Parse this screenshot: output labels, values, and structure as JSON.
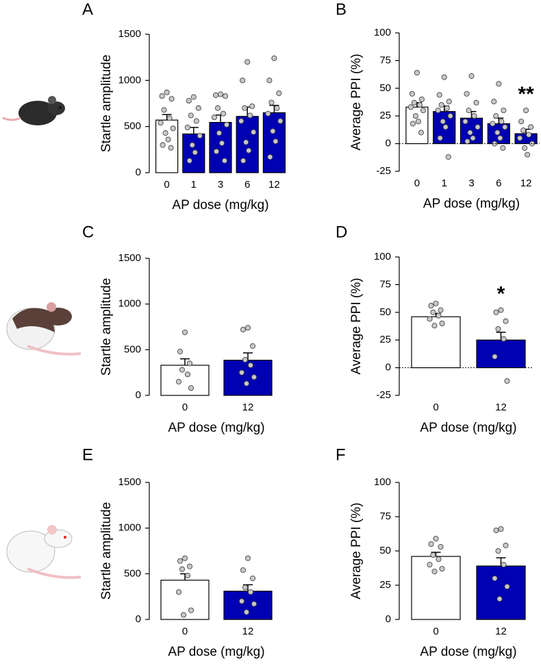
{
  "chart_data": [
    {
      "type": "bar",
      "panel": "A",
      "ylabel": "Startle amplitude",
      "xlabel": "AP dose (mg/kg)",
      "categories": [
        "0",
        "1",
        "3",
        "6",
        "12"
      ],
      "values": [
        570,
        420,
        545,
        610,
        650
      ],
      "errors": [
        60,
        70,
        80,
        100,
        80
      ],
      "colors": [
        "#ffffff",
        "#0000b3",
        "#0000b3",
        "#0000b3",
        "#0000b3"
      ],
      "points": [
        [
          870,
          830,
          800,
          680,
          590,
          540,
          480,
          430,
          360,
          300,
          270
        ],
        [
          820,
          780,
          700,
          620,
          560,
          490,
          400,
          300,
          220,
          130
        ],
        [
          850,
          840,
          830,
          700,
          640,
          600,
          520,
          430,
          320,
          230,
          130
        ],
        [
          1200,
          1000,
          720,
          700,
          620,
          560,
          440,
          330,
          240,
          130
        ],
        [
          1240,
          1000,
          860,
          760,
          700,
          640,
          560,
          450,
          340,
          170
        ]
      ],
      "ylim": [
        0,
        1500
      ],
      "yticks": [
        0,
        500,
        1000,
        1500
      ]
    },
    {
      "type": "bar",
      "panel": "B",
      "ylabel": "Average PPI (%)",
      "xlabel": "AP dose (mg/kg)",
      "categories": [
        "0",
        "1",
        "3",
        "6",
        "12"
      ],
      "values": [
        33,
        29,
        23,
        18,
        9
      ],
      "errors": [
        4,
        5,
        6,
        5,
        4
      ],
      "colors": [
        "#ffffff",
        "#0000b3",
        "#0000b3",
        "#0000b3",
        "#0000b3"
      ],
      "points": [
        [
          64,
          45,
          40,
          37,
          35,
          33,
          30,
          25,
          20,
          18,
          10
        ],
        [
          60,
          44,
          38,
          35,
          32,
          30,
          25,
          20,
          15,
          5,
          -12
        ],
        [
          61,
          45,
          37,
          30,
          25,
          20,
          15,
          10,
          5,
          2
        ],
        [
          54,
          38,
          30,
          25,
          20,
          18,
          15,
          10,
          5,
          0,
          -4
        ],
        [
          30,
          20,
          15,
          12,
          8,
          5,
          0,
          -4,
          -10
        ]
      ],
      "annotations": [
        {
          "text": "**",
          "category": "12"
        }
      ],
      "ylim": [
        -25,
        100
      ],
      "yticks": [
        -25,
        0,
        25,
        50,
        75,
        100
      ],
      "zero_line": true
    },
    {
      "type": "bar",
      "panel": "C",
      "ylabel": "Startle amplitude",
      "xlabel": "AP dose (mg/kg)",
      "categories": [
        "0",
        "12"
      ],
      "values": [
        330,
        385
      ],
      "errors": [
        70,
        80
      ],
      "colors": [
        "#ffffff",
        "#0000b3"
      ],
      "points": [
        [
          690,
          480,
          350,
          280,
          230,
          150,
          80
        ],
        [
          740,
          720,
          540,
          390,
          330,
          250,
          200,
          130
        ]
      ],
      "ylim": [
        0,
        1500
      ],
      "yticks": [
        0,
        500,
        1000,
        1500
      ]
    },
    {
      "type": "bar",
      "panel": "D",
      "ylabel": "Average PPI (%)",
      "xlabel": "AP dose (mg/kg)",
      "categories": [
        "0",
        "12"
      ],
      "values": [
        46,
        25
      ],
      "errors": [
        3,
        7
      ],
      "colors": [
        "#ffffff",
        "#0000b3"
      ],
      "points": [
        [
          58,
          56,
          52,
          50,
          47,
          44,
          40,
          38
        ],
        [
          52,
          50,
          42,
          35,
          26,
          10,
          -12
        ]
      ],
      "annotations": [
        {
          "text": "*",
          "category": "12"
        }
      ],
      "ylim": [
        -25,
        100
      ],
      "yticks": [
        -25,
        0,
        25,
        50,
        75,
        100
      ],
      "zero_line": true
    },
    {
      "type": "bar",
      "panel": "E",
      "ylabel": "Startle amplitude",
      "xlabel": "AP dose (mg/kg)",
      "categories": [
        "0",
        "12"
      ],
      "values": [
        430,
        310
      ],
      "errors": [
        70,
        70
      ],
      "colors": [
        "#ffffff",
        "#0000b3"
      ],
      "points": [
        [
          670,
          640,
          580,
          550,
          480,
          300,
          100,
          50
        ],
        [
          670,
          540,
          450,
          350,
          300,
          200,
          170,
          80
        ]
      ],
      "ylim": [
        0,
        1500
      ],
      "yticks": [
        0,
        500,
        1000,
        1500
      ]
    },
    {
      "type": "bar",
      "panel": "F",
      "ylabel": "Average PPI (%)",
      "xlabel": "AP dose (mg/kg)",
      "categories": [
        "0",
        "12"
      ],
      "values": [
        46,
        39
      ],
      "errors": [
        3,
        6
      ],
      "colors": [
        "#ffffff",
        "#0000b3"
      ],
      "points": [
        [
          59,
          55,
          53,
          47,
          44,
          40,
          37,
          35
        ],
        [
          66,
          65,
          54,
          50,
          40,
          30,
          24,
          15
        ]
      ],
      "ylim": [
        0,
        100
      ],
      "yticks": [
        0,
        25,
        50,
        75,
        100
      ]
    }
  ]
}
